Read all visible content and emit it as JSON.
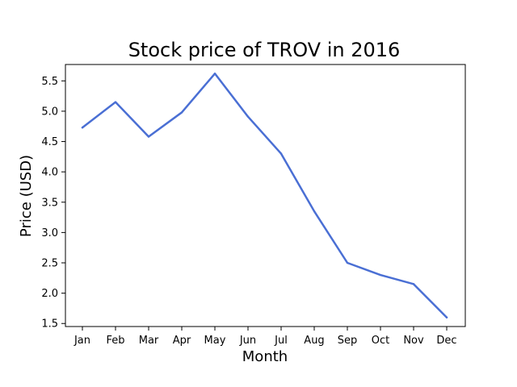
{
  "chart_data": {
    "type": "line",
    "title": "Stock price of TROV in 2016",
    "xlabel": "Month",
    "ylabel": "Price (USD)",
    "categories": [
      "Jan",
      "Feb",
      "Mar",
      "Apr",
      "May",
      "Jun",
      "Jul",
      "Aug",
      "Sep",
      "Oct",
      "Nov",
      "Dec"
    ],
    "series": [
      {
        "values": [
          4.73,
          5.15,
          4.58,
          4.98,
          5.62,
          4.91,
          4.3,
          3.35,
          2.5,
          2.3,
          2.15,
          1.6
        ]
      }
    ],
    "yticks": [
      "1.5",
      "2.0",
      "2.5",
      "3.0",
      "3.5",
      "4.0",
      "4.5",
      "5.0",
      "5.5"
    ],
    "ylim": [
      1.45,
      5.77
    ],
    "grid": false,
    "line_color": "#4a6fd4"
  }
}
